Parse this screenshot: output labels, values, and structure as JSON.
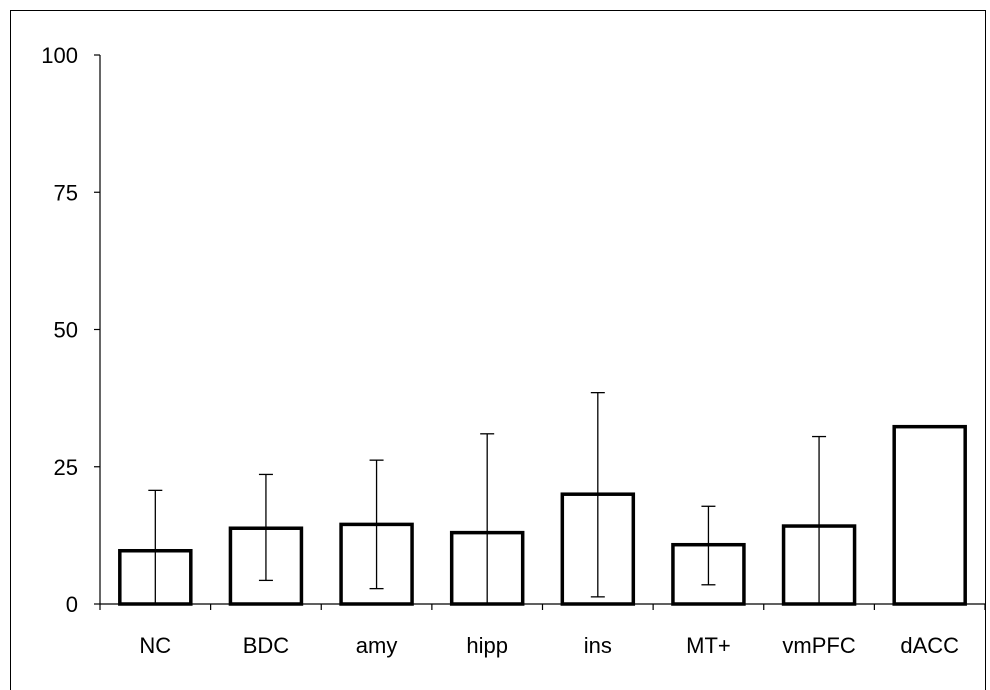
{
  "chart_data": {
    "type": "bar",
    "categories": [
      "NC",
      "BDC",
      "amy",
      "hipp",
      "ins",
      "MT+",
      "vmPFC",
      "dACC"
    ],
    "values": [
      9.7,
      13.8,
      14.5,
      13.0,
      20.0,
      10.8,
      14.2,
      32.3
    ],
    "error_upper": [
      20.7,
      23.6,
      26.2,
      31.0,
      38.5,
      17.8,
      30.5,
      null
    ],
    "error_lower": [
      0,
      4.3,
      2.8,
      0,
      1.3,
      3.5,
      0,
      null
    ],
    "ylim": [
      0,
      100
    ],
    "yticks": [
      0,
      25,
      50,
      75,
      100
    ],
    "title": "",
    "xlabel": "",
    "ylabel": "",
    "grid": false,
    "colors": {
      "bar_fill": "#ffffff",
      "bar_stroke": "#000000"
    }
  }
}
